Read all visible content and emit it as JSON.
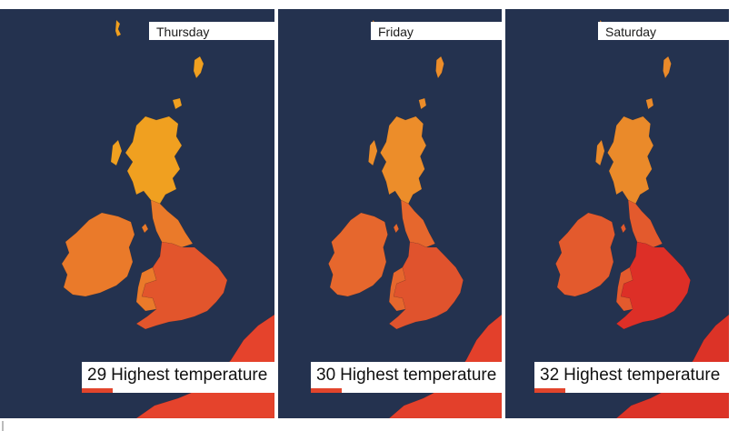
{
  "panels": [
    {
      "day": "Thursday",
      "temp_value": "29",
      "temp_label": "Highest temperature",
      "land_color": "#ea7a2a",
      "north_color": "#f0a020",
      "hot_color": "#e2552c",
      "europe_color": "#e5432c"
    },
    {
      "day": "Friday",
      "temp_value": "30",
      "temp_label": "Highest temperature",
      "land_color": "#e6672d",
      "north_color": "#ec8d2a",
      "hot_color": "#e0532d",
      "europe_color": "#e3402b"
    },
    {
      "day": "Saturday",
      "temp_value": "32",
      "temp_label": "Highest temperature",
      "land_color": "#e35a2d",
      "north_color": "#ea8a2a",
      "hot_color": "#dd2f27",
      "europe_color": "#dc3327"
    }
  ],
  "colors": {
    "sea": "#24324f",
    "bar": "#e2452c"
  },
  "caption": ""
}
